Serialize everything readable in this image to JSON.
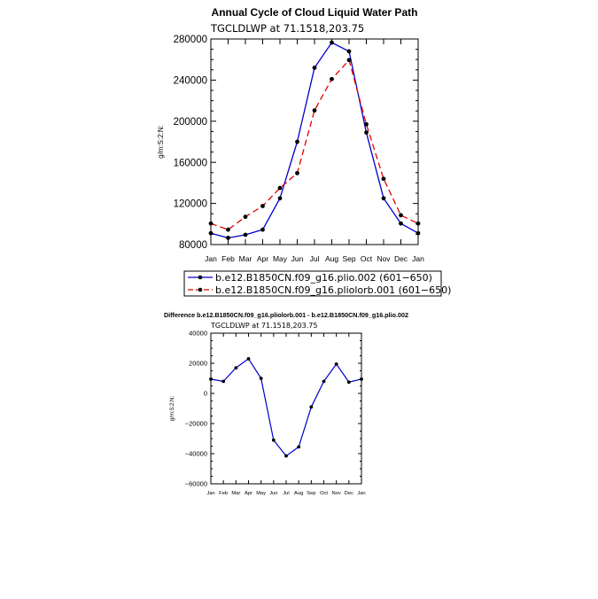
{
  "chart_data": [
    {
      "type": "line",
      "title": "Annual Cycle of Cloud Liquid Water Path",
      "subtitle": "TGCLDLWP  at  71.1518,203.75",
      "ylabel": "g/m:S:2:N:",
      "xlabel": "",
      "categories": [
        "Jan",
        "Feb",
        "Mar",
        "Apr",
        "May",
        "Jun",
        "Jul",
        "Aug",
        "Sep",
        "Oct",
        "Nov",
        "Dec",
        "Jan"
      ],
      "ylim": [
        80000,
        280000
      ],
      "yticks": [
        80000,
        120000,
        160000,
        200000,
        240000,
        280000
      ],
      "ytick_labels": [
        "80000",
        "120000",
        "160000",
        "200000",
        "240000",
        "280000"
      ],
      "legend_position": "bottom",
      "series": [
        {
          "name": "b.e12.B1850CN.f09_g16.plio.002 (601−650)",
          "color": "#0000cc",
          "dash": "solid",
          "values": [
            91000,
            86500,
            89500,
            94500,
            125000,
            180000,
            252000,
            276500,
            268000,
            189000,
            125000,
            100500,
            91000
          ]
        },
        {
          "name": "b.e12.B1850CN.f09_g16.pliolorb.001 (601−650)",
          "color": "#e00000",
          "dash": "dashed",
          "values": [
            100500,
            94500,
            107000,
            117500,
            135000,
            149500,
            210500,
            241000,
            259500,
            197000,
            144000,
            108500,
            100500
          ]
        }
      ]
    },
    {
      "type": "line",
      "title": "Difference b.e12.B1850CN.f09_g16.pliolorb.001 - b.e12.B1850CN.f09_g16.plio.002",
      "subtitle": "TGCLDLWP  at  71.1518,203.75",
      "ylabel": "g/m:S:2:N:",
      "xlabel": "",
      "categories": [
        "Jan",
        "Feb",
        "Mar",
        "Apr",
        "May",
        "Jun",
        "Jul",
        "Aug",
        "Sep",
        "Oct",
        "Nov",
        "Dec",
        "Jan"
      ],
      "ylim": [
        -60000,
        40000
      ],
      "yticks": [
        -60000,
        -40000,
        -20000,
        0,
        20000,
        40000
      ],
      "ytick_labels": [
        "−60000",
        "−40000",
        "−20000",
        "0",
        "20000",
        "40000"
      ],
      "series": [
        {
          "name": "difference",
          "color": "#0000cc",
          "dash": "solid",
          "values": [
            9500,
            8000,
            17000,
            23000,
            10000,
            -31000,
            -41500,
            -35500,
            -9000,
            8000,
            19500,
            7500,
            9500
          ]
        }
      ]
    }
  ]
}
